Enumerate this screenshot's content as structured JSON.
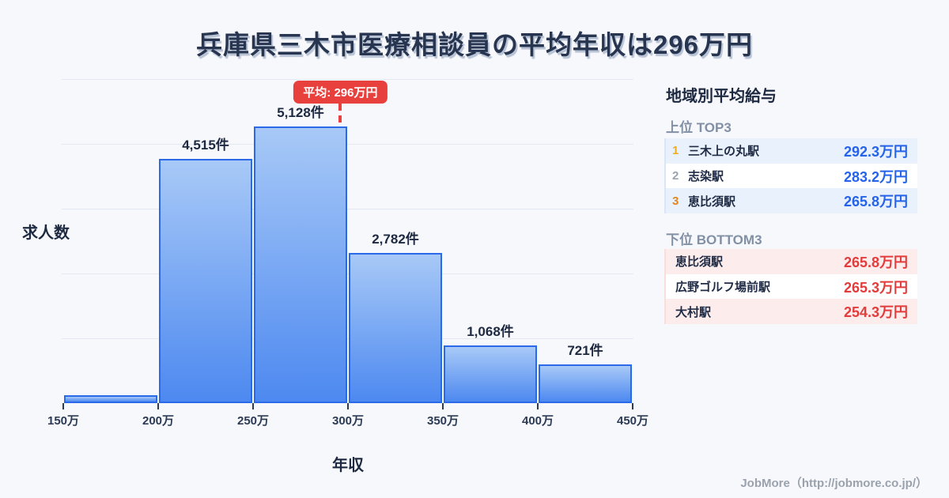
{
  "title": "兵庫県三木市医療相談員の平均年収は296万円",
  "chart_data": {
    "type": "bar",
    "xlabel": "年収",
    "ylabel": "求人数",
    "x_range": [
      150,
      450
    ],
    "x_ticks": [
      "150万",
      "200万",
      "250万",
      "300万",
      "350万",
      "400万",
      "450万"
    ],
    "ylim": [
      0,
      6000
    ],
    "gridline_count": 5,
    "bars": [
      {
        "range": [
          150,
          200
        ],
        "value": 150,
        "label": "",
        "estimated": true
      },
      {
        "range": [
          200,
          250
        ],
        "value": 4515,
        "label": "4,515件"
      },
      {
        "range": [
          250,
          300
        ],
        "value": 5128,
        "label": "5,128件"
      },
      {
        "range": [
          300,
          350
        ],
        "value": 2782,
        "label": "2,782件"
      },
      {
        "range": [
          350,
          400
        ],
        "value": 1068,
        "label": "1,068件"
      },
      {
        "range": [
          400,
          450
        ],
        "value": 721,
        "label": "721件"
      }
    ],
    "average": {
      "value": 296,
      "label": "平均: 296万円"
    }
  },
  "sidebar": {
    "title": "地域別平均給与",
    "top3": {
      "heading": "上位 TOP3",
      "rows": [
        {
          "rank": "1",
          "name": "三木上の丸駅",
          "value": "292.3万円"
        },
        {
          "rank": "2",
          "name": "志染駅",
          "value": "283.2万円"
        },
        {
          "rank": "3",
          "name": "恵比須駅",
          "value": "265.8万円"
        }
      ]
    },
    "bottom3": {
      "heading": "下位 BOTTOM3",
      "rows": [
        {
          "name": "恵比須駅",
          "value": "265.8万円"
        },
        {
          "name": "広野ゴルフ場前駅",
          "value": "265.3万円"
        },
        {
          "name": "大村駅",
          "value": "254.3万円"
        }
      ]
    }
  },
  "footer": {
    "credit": "JobMore（http://jobmore.co.jp/）"
  },
  "colors": {
    "accent_blue": "#2563eb",
    "bar_fill_top": "#a8c9f7",
    "bar_fill_bottom": "#4d89f0",
    "bar_border": "#2a6ae8",
    "average_red": "#e8403d",
    "value_red": "#e23c3c",
    "rank1": "#eead19",
    "rank2": "#9aa3ae",
    "rank3": "#e0861c",
    "row_blue_bg": "#e9f1fc",
    "row_pink_bg": "#fdecec",
    "title_navy": "#283550",
    "background": "#f7f8fb"
  }
}
